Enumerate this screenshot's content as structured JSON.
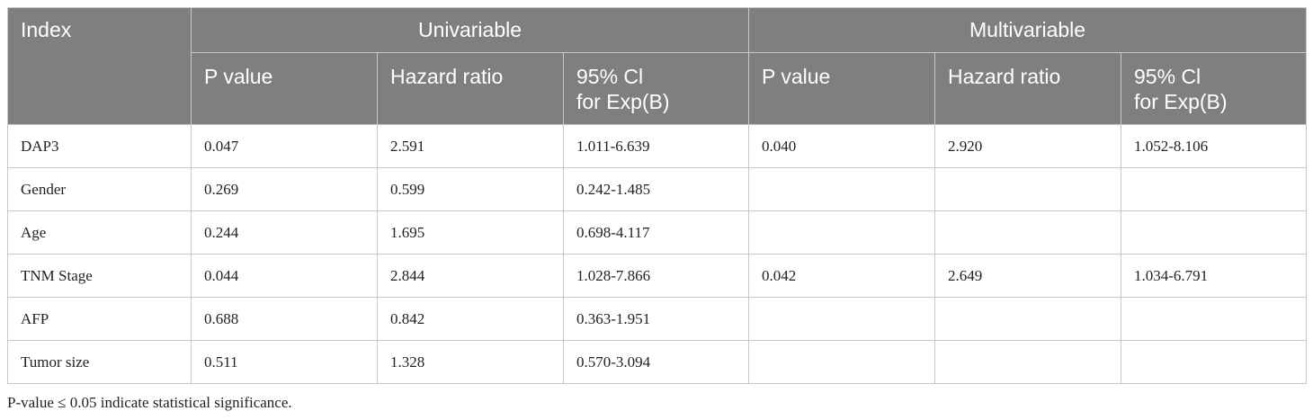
{
  "table": {
    "index_header": "Index",
    "groups": [
      "Univariable",
      "Multivariable"
    ],
    "subheaders": [
      "P value",
      "Hazard ratio",
      "95% Cl\nfor Exp(B)",
      "P value",
      "Hazard ratio",
      "95% Cl\nfor Exp(B)"
    ],
    "rows": [
      {
        "label": "DAP3",
        "cells": [
          "0.047",
          "2.591",
          "1.011-6.639",
          "0.040",
          "2.920",
          "1.052-8.106"
        ]
      },
      {
        "label": "Gender",
        "cells": [
          "0.269",
          "0.599",
          "0.242-1.485",
          "",
          "",
          ""
        ]
      },
      {
        "label": "Age",
        "cells": [
          "0.244",
          "1.695",
          "0.698-4.117",
          "",
          "",
          ""
        ]
      },
      {
        "label": "TNM Stage",
        "cells": [
          "0.044",
          "2.844",
          "1.028-7.866",
          "0.042",
          "2.649",
          "1.034-6.791"
        ]
      },
      {
        "label": "AFP",
        "cells": [
          "0.688",
          "0.842",
          "0.363-1.951",
          "",
          "",
          ""
        ]
      },
      {
        "label": "Tumor size",
        "cells": [
          "0.511",
          "1.328",
          "0.570-3.094",
          "",
          "",
          ""
        ]
      }
    ]
  },
  "footnote": "P-value ≤ 0.05 indicate statistical significance."
}
